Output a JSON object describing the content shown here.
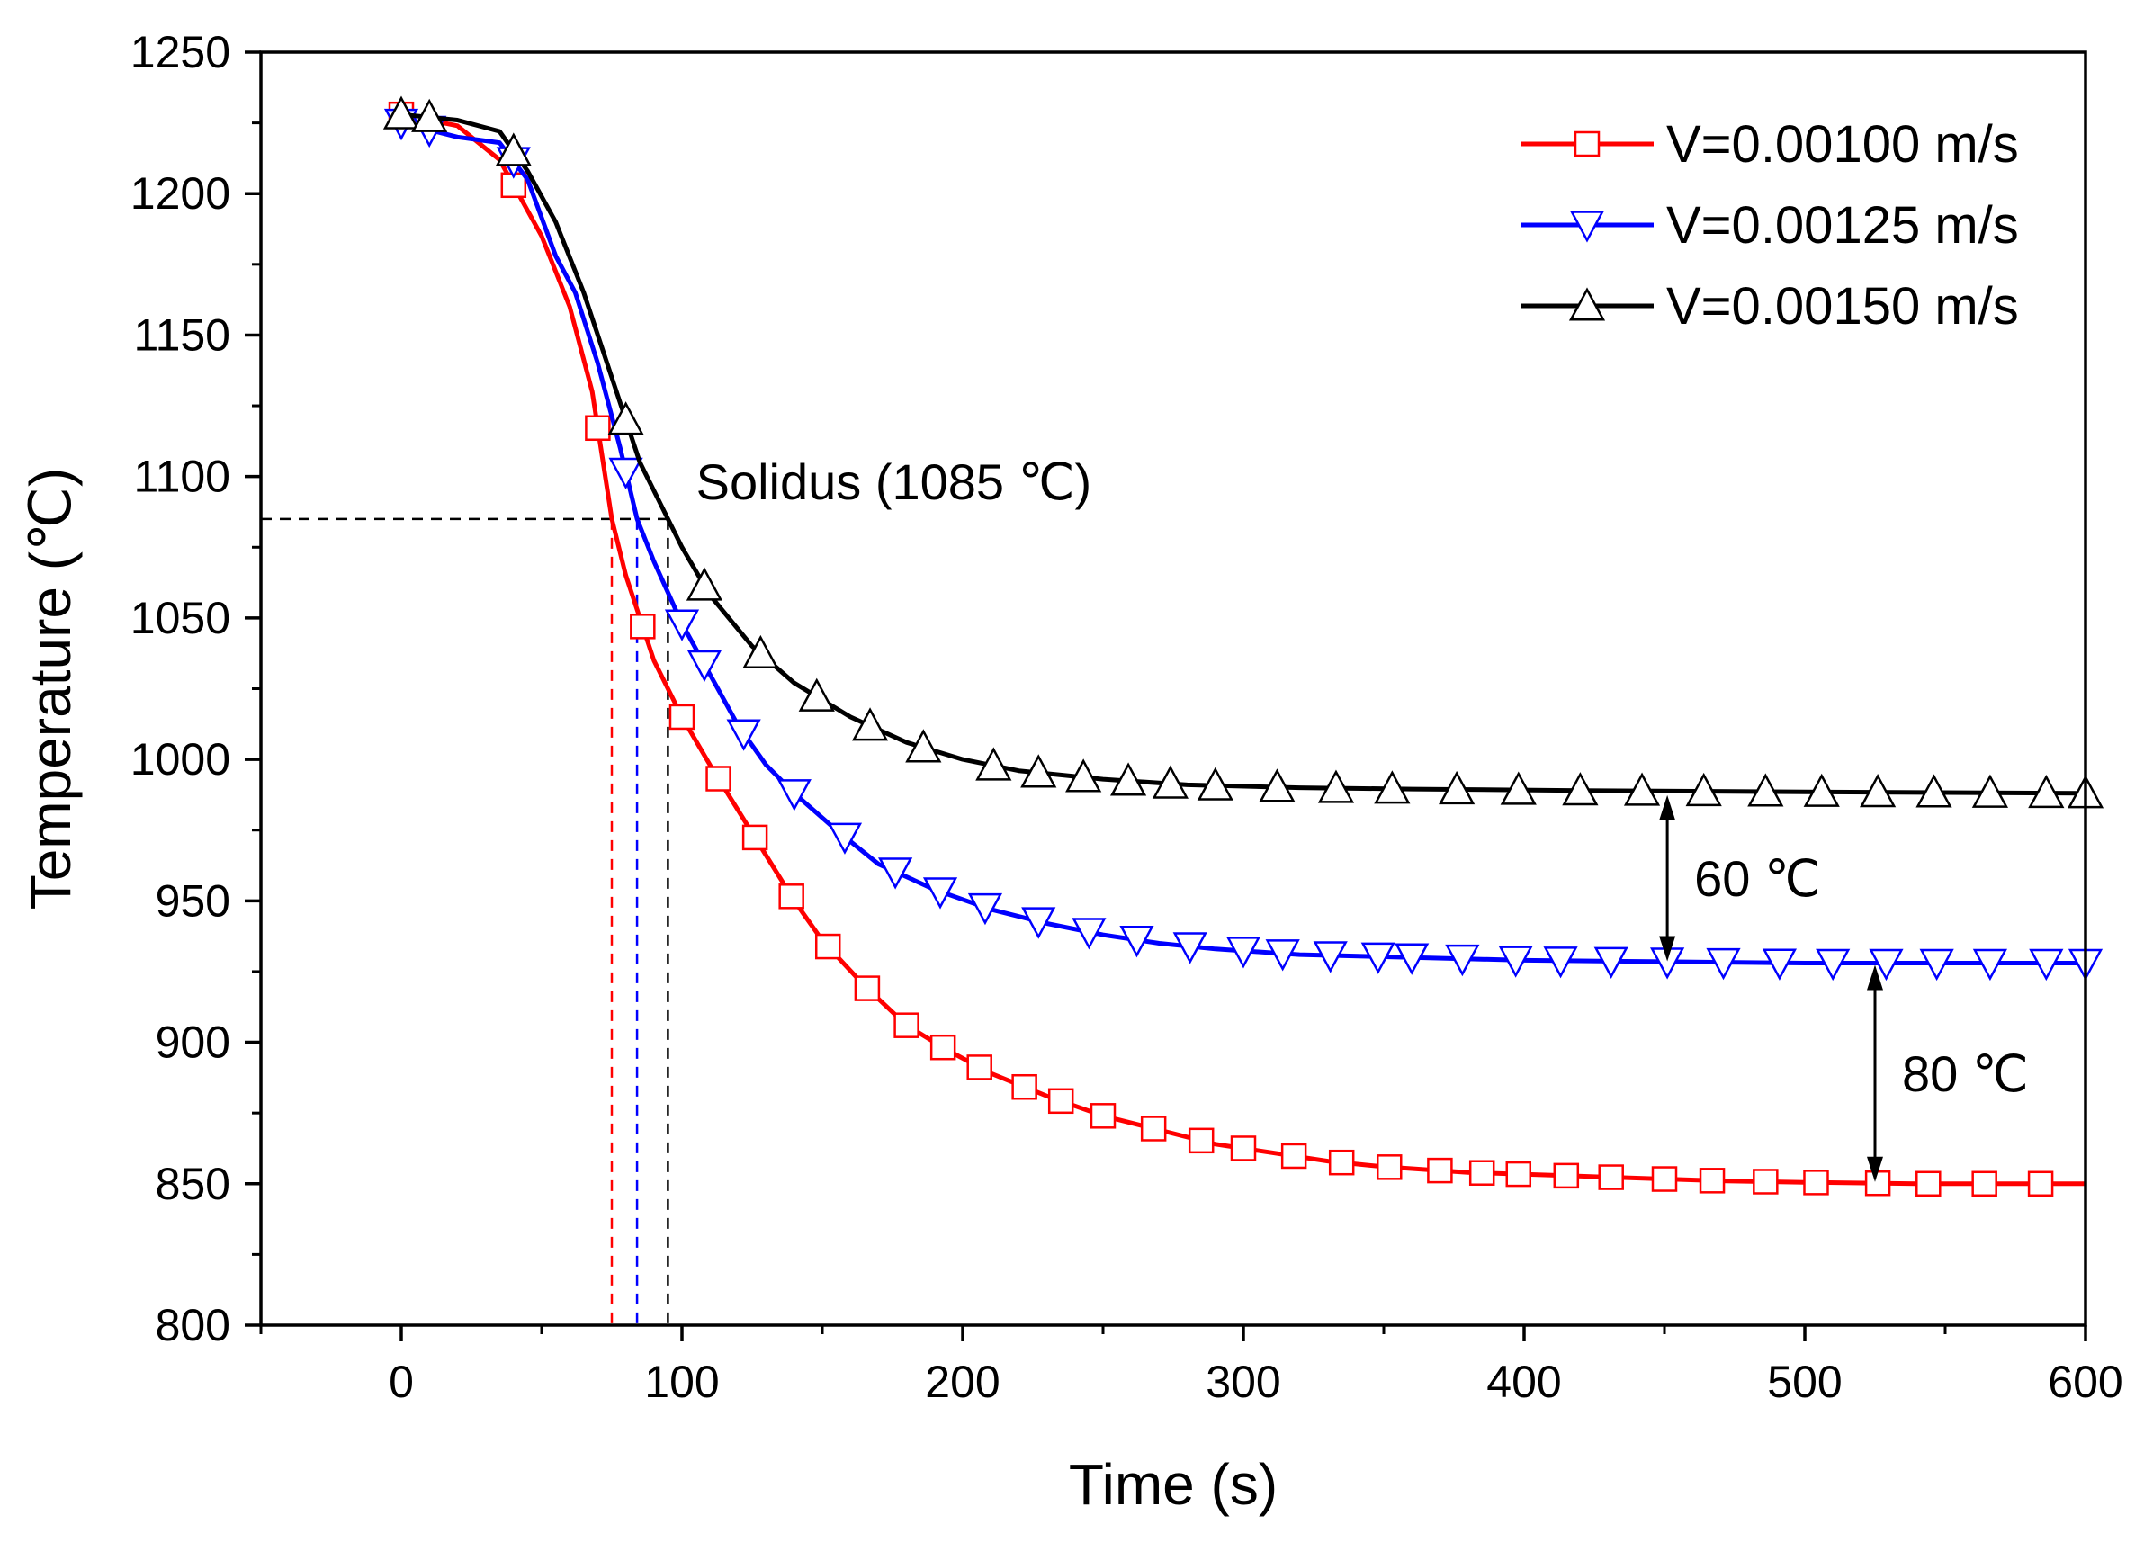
{
  "chart_data": {
    "type": "line",
    "xlabel": "Time (s)",
    "ylabel": "Temperature (℃)",
    "xlim": [
      -50,
      600
    ],
    "ylim": [
      800,
      1250
    ],
    "x_ticks": [
      0,
      100,
      200,
      300,
      400,
      500,
      600
    ],
    "x_tick_labels": [
      "0",
      "100",
      "200",
      "300",
      "400",
      "500",
      "600"
    ],
    "y_ticks": [
      800,
      850,
      900,
      950,
      1000,
      1050,
      1100,
      1150,
      1200,
      1250
    ],
    "y_tick_labels": [
      "800",
      "850",
      "900",
      "950",
      "1000",
      "1050",
      "1100",
      "1150",
      "1200",
      "1250"
    ],
    "grid": false,
    "legend_position": "top-right",
    "series": [
      {
        "name": "V=0.00100 m/s",
        "color": "#ff0000",
        "marker": "square",
        "points": [
          [
            0,
            1228
          ],
          [
            20,
            1224
          ],
          [
            35,
            1212
          ],
          [
            50,
            1185
          ],
          [
            60,
            1160
          ],
          [
            68,
            1130
          ],
          [
            75,
            1085
          ],
          [
            80,
            1065
          ],
          [
            85,
            1050
          ],
          [
            90,
            1035
          ],
          [
            100,
            1015
          ],
          [
            110,
            998
          ],
          [
            120,
            982
          ],
          [
            130,
            966
          ],
          [
            140,
            950
          ],
          [
            150,
            936
          ],
          [
            165,
            920
          ],
          [
            180,
            906
          ],
          [
            195,
            897
          ],
          [
            210,
            889
          ],
          [
            230,
            881
          ],
          [
            250,
            874
          ],
          [
            270,
            869
          ],
          [
            290,
            864
          ],
          [
            310,
            861
          ],
          [
            330,
            858
          ],
          [
            350,
            856
          ],
          [
            380,
            854
          ],
          [
            410,
            853
          ],
          [
            440,
            852
          ],
          [
            470,
            851
          ],
          [
            500,
            850.5
          ],
          [
            540,
            850
          ],
          [
            600,
            850
          ]
        ],
        "marker_x": [
          0,
          40,
          70,
          86,
          100,
          113,
          126,
          139,
          152,
          166,
          180,
          193,
          206,
          222,
          235,
          250,
          268,
          285,
          300,
          318,
          335,
          352,
          370,
          385,
          398,
          415,
          431,
          450,
          467,
          486,
          504,
          526,
          544,
          564,
          584
        ]
      },
      {
        "name": "V=0.00125 m/s",
        "color": "#0000ff",
        "marker": "triangle-down",
        "points": [
          [
            0,
            1225
          ],
          [
            20,
            1220
          ],
          [
            35,
            1218
          ],
          [
            45,
            1205
          ],
          [
            55,
            1178
          ],
          [
            62,
            1165
          ],
          [
            70,
            1140
          ],
          [
            78,
            1110
          ],
          [
            84,
            1085
          ],
          [
            90,
            1070
          ],
          [
            100,
            1048
          ],
          [
            110,
            1030
          ],
          [
            120,
            1012
          ],
          [
            130,
            998
          ],
          [
            140,
            988
          ],
          [
            155,
            975
          ],
          [
            170,
            963
          ],
          [
            190,
            954
          ],
          [
            210,
            947
          ],
          [
            230,
            942
          ],
          [
            250,
            938
          ],
          [
            270,
            935
          ],
          [
            290,
            933
          ],
          [
            320,
            931
          ],
          [
            360,
            930
          ],
          [
            400,
            929
          ],
          [
            450,
            928.5
          ],
          [
            500,
            928
          ],
          [
            600,
            928
          ]
        ],
        "marker_x": [
          0,
          10,
          40,
          80,
          100,
          108,
          122,
          140,
          158,
          176,
          192,
          208,
          227,
          245,
          262,
          281,
          300,
          314,
          331,
          348,
          360,
          378,
          397,
          413,
          431,
          451,
          471,
          491,
          510,
          529,
          547,
          566,
          586,
          600
        ]
      },
      {
        "name": "V=0.00150 m/s",
        "color": "#000000",
        "marker": "triangle-up",
        "points": [
          [
            0,
            1228
          ],
          [
            20,
            1226
          ],
          [
            35,
            1222
          ],
          [
            45,
            1208
          ],
          [
            55,
            1190
          ],
          [
            65,
            1165
          ],
          [
            75,
            1135
          ],
          [
            85,
            1105
          ],
          [
            95,
            1085
          ],
          [
            100,
            1075
          ],
          [
            110,
            1058
          ],
          [
            125,
            1040
          ],
          [
            140,
            1027
          ],
          [
            160,
            1015
          ],
          [
            180,
            1006
          ],
          [
            200,
            1000
          ],
          [
            220,
            996
          ],
          [
            250,
            993
          ],
          [
            280,
            991
          ],
          [
            320,
            990
          ],
          [
            360,
            989.5
          ],
          [
            420,
            989
          ],
          [
            500,
            988.5
          ],
          [
            600,
            988
          ]
        ],
        "marker_x": [
          0,
          10,
          40,
          80,
          108,
          128,
          148,
          167,
          186,
          211,
          227,
          243,
          259,
          274,
          290,
          312,
          333,
          353,
          376,
          398,
          420,
          442,
          464,
          486,
          506,
          526,
          546,
          566,
          586,
          600
        ]
      }
    ],
    "solidus": {
      "label": "Solidus (1085 ℃)",
      "temperature": 1085,
      "x_start": -50,
      "x_end": 95,
      "drop_lines": [
        {
          "x": 75,
          "color": "#ff0000"
        },
        {
          "x": 84,
          "color": "#0000ff"
        },
        {
          "x": 95,
          "color": "#000000"
        }
      ]
    },
    "differences": [
      {
        "label": "60 ℃",
        "x": 451,
        "y_top": 988,
        "y_bottom": 928
      },
      {
        "label": "80 ℃",
        "x": 525,
        "y_top": 928,
        "y_bottom": 850
      }
    ]
  }
}
